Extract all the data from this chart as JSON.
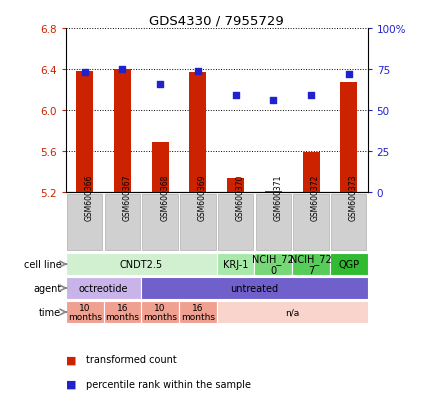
{
  "title": "GDS4330 / 7955729",
  "samples": [
    "GSM600366",
    "GSM600367",
    "GSM600368",
    "GSM600369",
    "GSM600370",
    "GSM600371",
    "GSM600372",
    "GSM600373"
  ],
  "bar_values": [
    6.38,
    6.4,
    5.69,
    6.37,
    5.34,
    5.21,
    5.59,
    6.27
  ],
  "bar_bottom": 5.2,
  "dot_values": [
    73,
    75,
    66,
    74,
    59,
    56,
    59,
    72
  ],
  "ylim": [
    5.2,
    6.8
  ],
  "y2lim": [
    0,
    100
  ],
  "yticks": [
    5.2,
    5.6,
    6.0,
    6.4,
    6.8
  ],
  "y2ticks": [
    0,
    25,
    50,
    75,
    100
  ],
  "y2tick_labels": [
    "0",
    "25",
    "50",
    "75",
    "100%"
  ],
  "bar_color": "#cc2200",
  "dot_color": "#2222cc",
  "cell_line_groups": [
    {
      "label": "CNDT2.5",
      "start": 0,
      "end": 4,
      "color": "#d0f0d0"
    },
    {
      "label": "KRJ-1",
      "start": 4,
      "end": 5,
      "color": "#a8e8a8"
    },
    {
      "label": "NCIH_72\n0",
      "start": 5,
      "end": 6,
      "color": "#78d878"
    },
    {
      "label": "NCIH_72\n7",
      "start": 6,
      "end": 7,
      "color": "#58cc58"
    },
    {
      "label": "QGP",
      "start": 7,
      "end": 8,
      "color": "#30bb30"
    }
  ],
  "agent_groups": [
    {
      "label": "octreotide",
      "start": 0,
      "end": 2,
      "color": "#c8b4e8"
    },
    {
      "label": "untreated",
      "start": 2,
      "end": 8,
      "color": "#7060cc"
    }
  ],
  "time_groups": [
    {
      "label": "10\nmonths",
      "start": 0,
      "end": 1,
      "color": "#f0a090"
    },
    {
      "label": "16\nmonths",
      "start": 1,
      "end": 2,
      "color": "#f0a090"
    },
    {
      "label": "10\nmonths",
      "start": 2,
      "end": 3,
      "color": "#f0a090"
    },
    {
      "label": "16\nmonths",
      "start": 3,
      "end": 4,
      "color": "#f0a090"
    },
    {
      "label": "n/a",
      "start": 4,
      "end": 8,
      "color": "#f8d4cc"
    }
  ],
  "sample_box_color": "#d0d0d0",
  "sample_box_edge": "#b0b0b0",
  "legend_items": [
    {
      "label": "transformed count",
      "color": "#cc2200"
    },
    {
      "label": "percentile rank within the sample",
      "color": "#2222cc"
    }
  ],
  "row_labels": [
    "cell line",
    "agent",
    "time"
  ],
  "arrow_color": "#888888"
}
